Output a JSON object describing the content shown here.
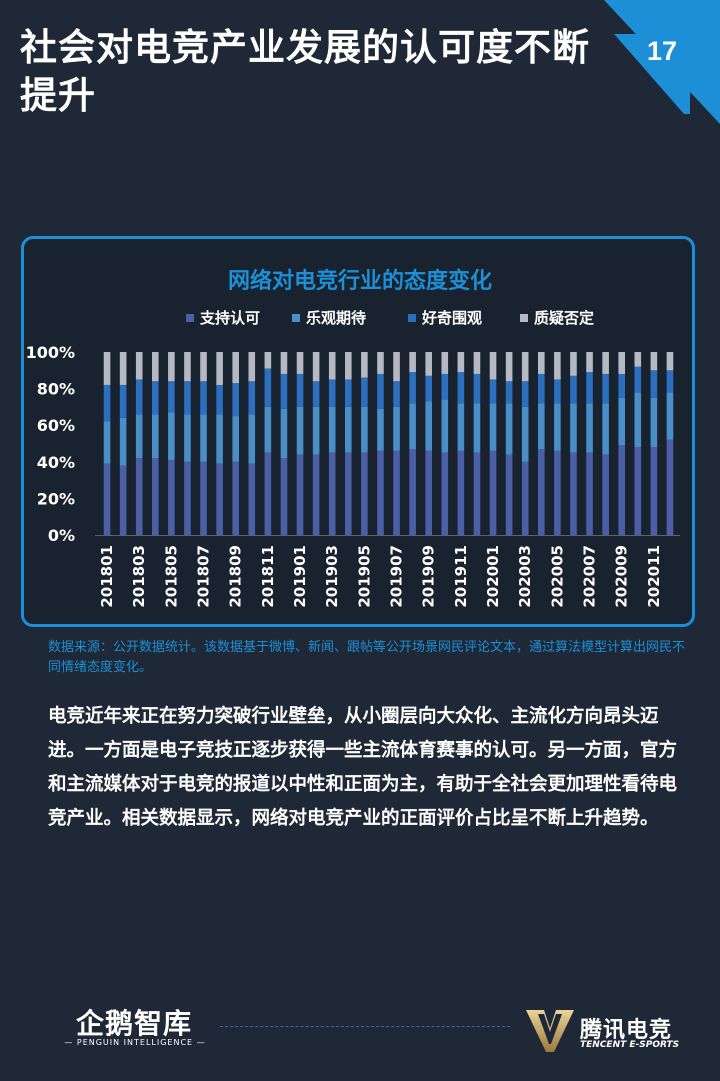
{
  "page": {
    "title": "社会对电竞产业发展的认可度不断提升",
    "number": "17",
    "source": "数据来源：公开数据统计。该数据基于微博、新闻、跟帖等公开场景网民评论文本，通过算法模型计算出网民不同情绪态度变化。",
    "body": "电竞近年来正在努力突破行业壁垒，从小圈层向大众化、主流化方向昂头迈进。一方面是电子竞技正逐步获得一些主流体育赛事的认可。另一方面，官方和主流媒体对于电竞的报道以中性和正面为主，有助于全社会更加理性看待电竞产业。相关数据显示，网络对电竞产业的正面评价占比呈不断上升趋势。"
  },
  "footer": {
    "left_logo": "企鹅智库",
    "left_sub": "— PENGUIN INTELLIGENCE —",
    "right_logo": "腾讯电竞",
    "right_sub": "TENCENT E-SPORTS"
  },
  "colors": {
    "background": "#1f2836",
    "accent": "#1c8fd6",
    "support": "#4a5fa6",
    "optimistic": "#4a8ec8",
    "curious": "#2b6fbe",
    "doubt": "#b4b9c2"
  },
  "chart_data": {
    "type": "bar",
    "stacked": true,
    "title": "网络对电竞行业的态度变化",
    "legend_position": "top",
    "ylim": [
      0,
      100
    ],
    "yticks": [
      "0%",
      "20%",
      "40%",
      "60%",
      "80%",
      "100%"
    ],
    "categories": [
      "201801",
      "201802",
      "201803",
      "201804",
      "201805",
      "201806",
      "201807",
      "201808",
      "201809",
      "201810",
      "201811",
      "201812",
      "201901",
      "201902",
      "201903",
      "201904",
      "201905",
      "201906",
      "201907",
      "201908",
      "201909",
      "201910",
      "201911",
      "201912",
      "202001",
      "202002",
      "202003",
      "202004",
      "202005",
      "202006",
      "202007",
      "202008",
      "202009",
      "202010",
      "202011",
      "202012"
    ],
    "xtick_labels": [
      "201801",
      "201803",
      "201805",
      "201807",
      "201809",
      "201811",
      "201901",
      "201903",
      "201905",
      "201907",
      "201909",
      "201911",
      "202001",
      "202003",
      "202005",
      "202007",
      "202009",
      "202011"
    ],
    "series": [
      {
        "name": "支持认可",
        "values": [
          39,
          38,
          42,
          42,
          41,
          40,
          40,
          39,
          40,
          39,
          45,
          42,
          44,
          44,
          45,
          45,
          45,
          46,
          46,
          47,
          46,
          45,
          46,
          45,
          46,
          44,
          40,
          47,
          46,
          45,
          45,
          44,
          49,
          48,
          48,
          52
        ]
      },
      {
        "name": "乐观期待",
        "values": [
          23,
          26,
          24,
          24,
          26,
          26,
          26,
          27,
          25,
          27,
          25,
          27,
          26,
          26,
          25,
          25,
          25,
          23,
          24,
          25,
          27,
          29,
          26,
          27,
          26,
          28,
          30,
          25,
          26,
          27,
          27,
          28,
          26,
          30,
          27,
          26
        ]
      },
      {
        "name": "好奇围观",
        "values": [
          20,
          18,
          19,
          18,
          17,
          18,
          18,
          16,
          18,
          18,
          21,
          19,
          18,
          14,
          15,
          15,
          16,
          19,
          14,
          17,
          14,
          14,
          17,
          16,
          13,
          12,
          14,
          16,
          13,
          15,
          17,
          16,
          13,
          14,
          15,
          12
        ]
      },
      {
        "name": "质疑否定",
        "values": [
          18,
          18,
          15,
          16,
          16,
          16,
          16,
          18,
          17,
          16,
          9,
          12,
          12,
          16,
          15,
          15,
          14,
          12,
          16,
          11,
          13,
          12,
          11,
          12,
          15,
          16,
          16,
          12,
          15,
          13,
          11,
          12,
          12,
          8,
          10,
          10
        ]
      }
    ]
  }
}
